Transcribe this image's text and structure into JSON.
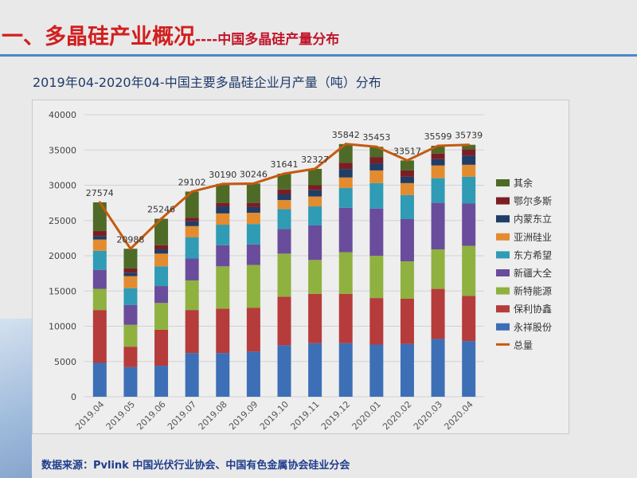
{
  "header": {
    "main_title": "一、多晶硅产业概况",
    "separator": "----",
    "sub_title": "中国多晶硅产量分布"
  },
  "source_text": "数据来源：Pvlink 中国光伏行业协会、中国有色金属协会硅业分会",
  "colors": {
    "title_red": "#d11f1f",
    "rule_blue": "#4a88c7",
    "total_line": "#c55a11"
  },
  "chart_data": {
    "type": "bar",
    "stacked": true,
    "title": "2019年04-2020年04-中国主要多晶硅企业月产量（吨）分布",
    "categories": [
      "2019.04",
      "2019.05",
      "2019.06",
      "2019.07",
      "2019.08",
      "2019.09",
      "2019.10",
      "2019.11",
      "2019.12",
      "2020.01",
      "2020.02",
      "2020.03",
      "2020.04"
    ],
    "ylim": [
      0,
      40000
    ],
    "yticks": [
      0,
      5000,
      10000,
      15000,
      20000,
      25000,
      30000,
      35000,
      40000
    ],
    "grid": true,
    "legend_position": "right",
    "series": [
      {
        "name": "永祥股份",
        "color": "#3d6fb6",
        "values": [
          4800,
          4200,
          4400,
          6200,
          6200,
          6400,
          7300,
          7600,
          7600,
          7400,
          7500,
          8200,
          7900
        ]
      },
      {
        "name": "保利协鑫",
        "color": "#b63b3b",
        "values": [
          7500,
          2900,
          5100,
          6100,
          6300,
          6200,
          6900,
          7000,
          7000,
          6600,
          6400,
          7100,
          6400
        ]
      },
      {
        "name": "新特能源",
        "color": "#8fb13f",
        "values": [
          3000,
          3100,
          3800,
          4200,
          6000,
          6100,
          6100,
          4800,
          5900,
          6000,
          5300,
          5600,
          7100
        ]
      },
      {
        "name": "新疆大全",
        "color": "#6a4c9c",
        "values": [
          2700,
          2800,
          2400,
          3100,
          3000,
          2900,
          3500,
          4900,
          6300,
          6700,
          6000,
          6600,
          6000
        ]
      },
      {
        "name": "东方希望",
        "color": "#2f9bb5",
        "values": [
          2700,
          2400,
          2800,
          3000,
          2900,
          2900,
          2800,
          2700,
          2800,
          3600,
          3400,
          3500,
          3800
        ]
      },
      {
        "name": "亚洲硅业",
        "color": "#e38b2f",
        "values": [
          1600,
          1700,
          1800,
          1600,
          1600,
          1600,
          1300,
          1400,
          1500,
          1800,
          1700,
          1800,
          1700
        ]
      },
      {
        "name": "内蒙东立",
        "color": "#1f3d66",
        "values": [
          500,
          500,
          600,
          700,
          1000,
          800,
          800,
          900,
          1200,
          1000,
          900,
          900,
          1300
        ]
      },
      {
        "name": "鄂尔多斯",
        "color": "#7b1e24",
        "values": [
          700,
          600,
          600,
          500,
          500,
          600,
          700,
          700,
          900,
          900,
          900,
          800,
          900
        ]
      },
      {
        "name": "其余",
        "color": "#4e6a27",
        "values": [
          4074,
          2788,
          3746,
          3702,
          2690,
          2746,
          2241,
          2327,
          2642,
          1453,
          1417,
          1099,
          639
        ]
      }
    ],
    "total_line": {
      "name": "总量",
      "color": "#c55a11",
      "values": [
        27574,
        20988,
        25246,
        29102,
        30190,
        30246,
        31641,
        32327,
        35842,
        35453,
        33517,
        35599,
        35739
      ]
    }
  }
}
